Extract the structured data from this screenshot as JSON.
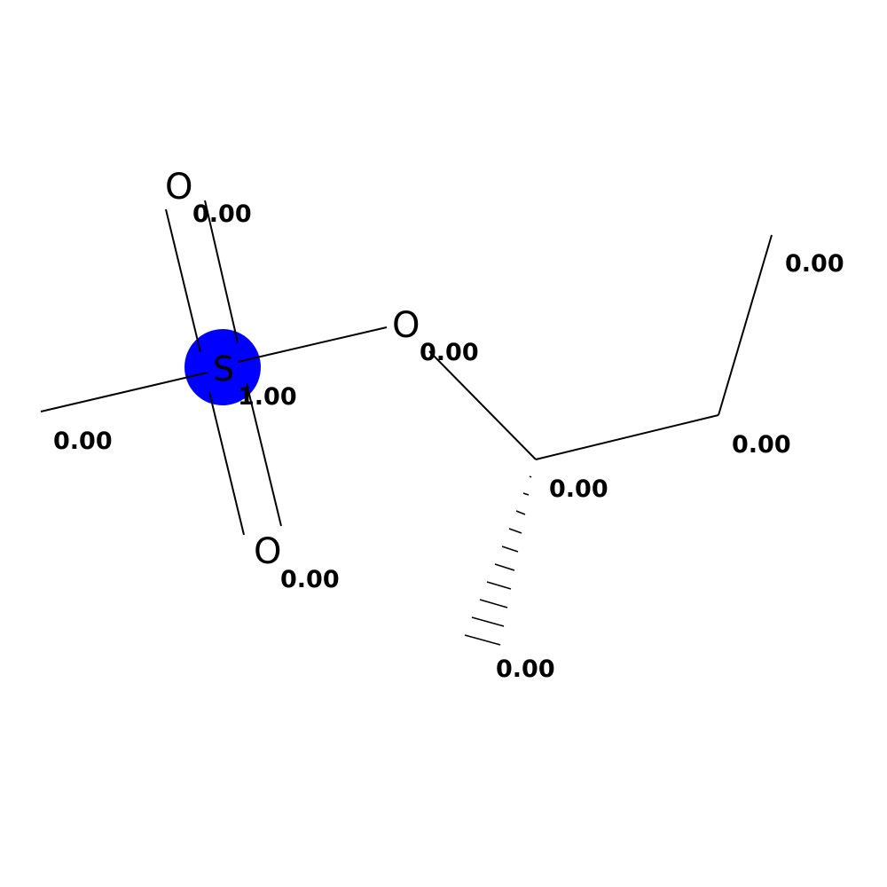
{
  "colors": {
    "highlight": "#0000ff",
    "bond": "#000000",
    "background": "#ffffff"
  },
  "atoms": {
    "sulfur": "S",
    "oxygen_top": "O",
    "oxygen_bridge": "O",
    "oxygen_bottom": "O"
  },
  "weights": {
    "oxygen_top": "0.00",
    "methyl_left": "0.00",
    "sulfur": "1.00",
    "oxygen_bridge": "0.00",
    "oxygen_bottom": "0.00",
    "chiral_carbon": "0.00",
    "methyl_wedge": "0.00",
    "ch2_carbon": "0.00",
    "methyl_terminal": "0.00"
  }
}
